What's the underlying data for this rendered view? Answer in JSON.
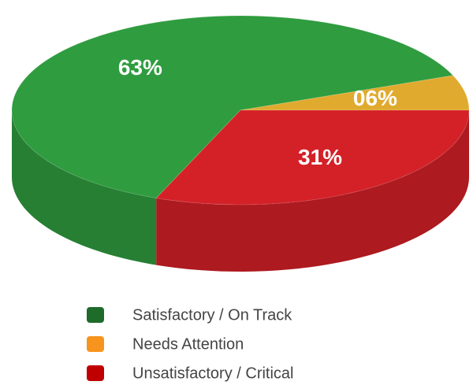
{
  "chart_data": {
    "type": "pie",
    "categories": [
      "Satisfactory / On Track",
      "Needs Attention",
      "Unsatisfactory / Critical"
    ],
    "values": [
      63,
      6,
      31
    ],
    "value_labels": [
      "63%",
      "06%",
      "31%"
    ],
    "colors": [
      "#2f9c3f",
      "#e0aa2e",
      "#d42027"
    ],
    "legend_colors": [
      "#1e6b2a",
      "#f7941d",
      "#c00000"
    ]
  }
}
